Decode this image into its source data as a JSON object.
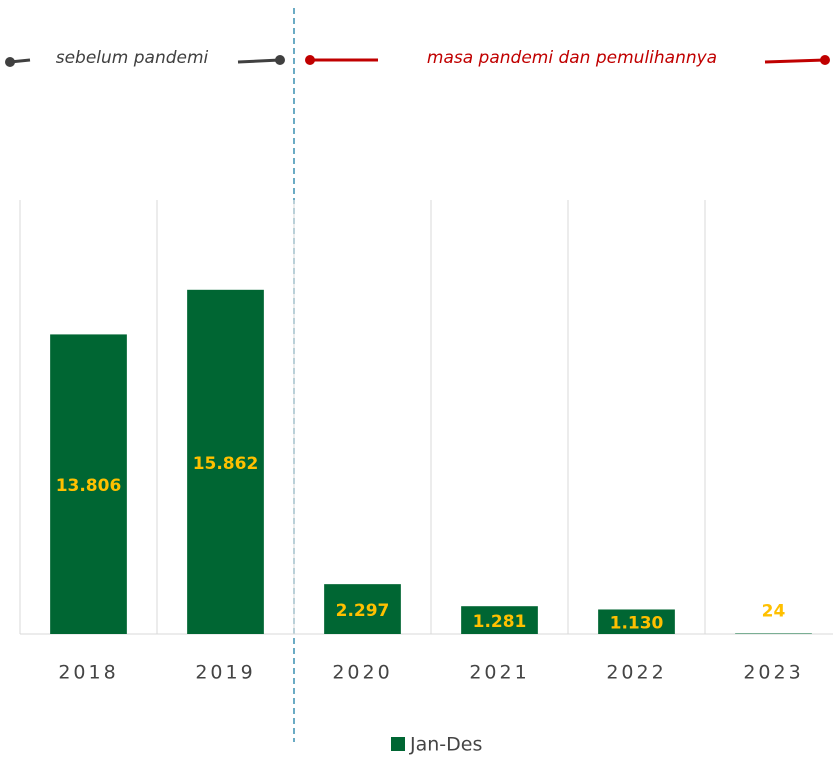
{
  "chart_data": {
    "type": "bar",
    "annotations": [
      "sebelum pandemi",
      "masa pandemi dan pemulihannya"
    ],
    "categories": [
      "2018",
      "2019",
      "2020",
      "2021",
      "2022",
      "2023"
    ],
    "series": [
      {
        "name": "Jan-Des",
        "color": "#006633",
        "values": [
          13806,
          15862,
          2297,
          1281,
          1130,
          24
        ],
        "value_labels": [
          "13.806",
          "15.862",
          "2.297",
          "1.281",
          "1.130",
          "24"
        ]
      }
    ],
    "ylim": [
      0,
      20000
    ],
    "grid": true
  }
}
